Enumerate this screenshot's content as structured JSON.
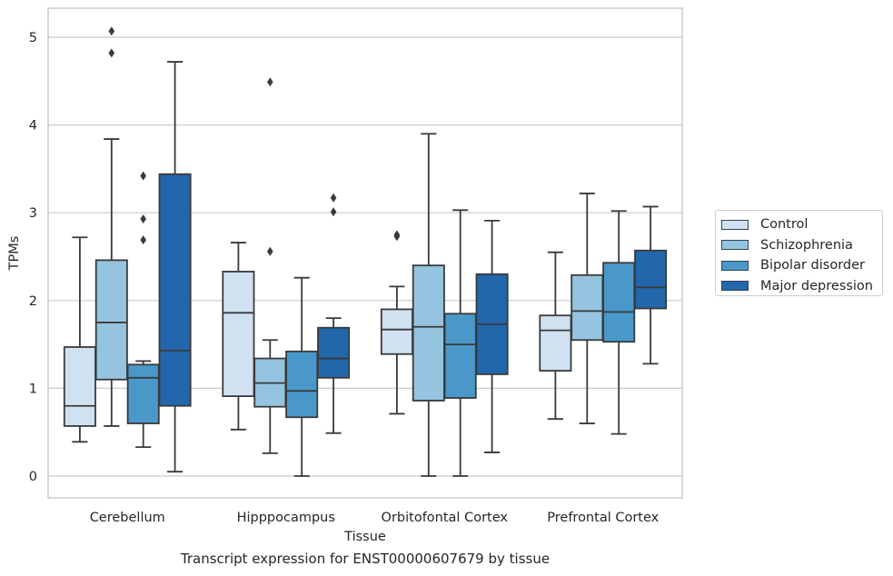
{
  "chart_data": {
    "type": "box",
    "xlabel": "Tissue",
    "ylabel": "TPMs",
    "caption": "Transcript expression for ENST00000607679 by tissue",
    "ylim": [
      -0.25,
      5.35
    ],
    "yticks": [
      0,
      1,
      2,
      3,
      4,
      5
    ],
    "grid": "horizontal",
    "legend_placement": "right",
    "categories": [
      "Cerebellum",
      "Hipppocampus",
      "Orbitofontal Cortex",
      "Prefrontal Cortex"
    ],
    "series": [
      {
        "name": "Control",
        "color": "#d0e1f2",
        "boxes": [
          {
            "whislo": 0.39,
            "q1": 0.57,
            "med": 0.8,
            "q3": 1.47,
            "whishi": 2.72,
            "fliers": []
          },
          {
            "whislo": 0.53,
            "q1": 0.91,
            "med": 1.86,
            "q3": 2.33,
            "whishi": 2.66,
            "fliers": []
          },
          {
            "whislo": 0.71,
            "q1": 1.39,
            "med": 1.67,
            "q3": 1.9,
            "whishi": 2.16,
            "fliers": [
              2.73,
              2.75
            ]
          },
          {
            "whislo": 0.65,
            "q1": 1.2,
            "med": 1.66,
            "q3": 1.83,
            "whishi": 2.55,
            "fliers": []
          }
        ]
      },
      {
        "name": "Schizophrenia",
        "color": "#94c4df",
        "boxes": [
          {
            "whislo": 0.57,
            "q1": 1.1,
            "med": 1.75,
            "q3": 2.46,
            "whishi": 3.84,
            "fliers": [
              4.82,
              5.07
            ]
          },
          {
            "whislo": 0.26,
            "q1": 0.79,
            "med": 1.06,
            "q3": 1.34,
            "whishi": 1.55,
            "fliers": [
              2.56,
              4.49
            ]
          },
          {
            "whislo": 0.0,
            "q1": 0.86,
            "med": 1.7,
            "q3": 2.4,
            "whishi": 3.9,
            "fliers": []
          },
          {
            "whislo": 0.6,
            "q1": 1.55,
            "med": 1.88,
            "q3": 2.29,
            "whishi": 3.22,
            "fliers": []
          }
        ]
      },
      {
        "name": "Bipolar disorder",
        "color": "#4a98c9",
        "boxes": [
          {
            "whislo": 0.33,
            "q1": 0.6,
            "med": 1.12,
            "q3": 1.27,
            "whishi": 1.31,
            "fliers": [
              2.69,
              2.93,
              3.42
            ]
          },
          {
            "whislo": 0.0,
            "q1": 0.67,
            "med": 0.97,
            "q3": 1.42,
            "whishi": 2.26,
            "fliers": []
          },
          {
            "whislo": 0.0,
            "q1": 0.89,
            "med": 1.5,
            "q3": 1.85,
            "whishi": 3.03,
            "fliers": []
          },
          {
            "whislo": 0.48,
            "q1": 1.53,
            "med": 1.87,
            "q3": 2.43,
            "whishi": 3.02,
            "fliers": []
          }
        ]
      },
      {
        "name": "Major depression",
        "color": "#2267ac",
        "boxes": [
          {
            "whislo": 0.05,
            "q1": 0.8,
            "med": 1.43,
            "q3": 3.44,
            "whishi": 4.72,
            "fliers": []
          },
          {
            "whislo": 0.49,
            "q1": 1.12,
            "med": 1.34,
            "q3": 1.69,
            "whishi": 1.8,
            "fliers": [
              3.01,
              3.17
            ]
          },
          {
            "whislo": 0.27,
            "q1": 1.16,
            "med": 1.73,
            "q3": 2.3,
            "whishi": 2.91,
            "fliers": []
          },
          {
            "whislo": 1.28,
            "q1": 1.91,
            "med": 2.15,
            "q3": 2.57,
            "whishi": 3.07,
            "fliers": []
          }
        ]
      }
    ]
  }
}
